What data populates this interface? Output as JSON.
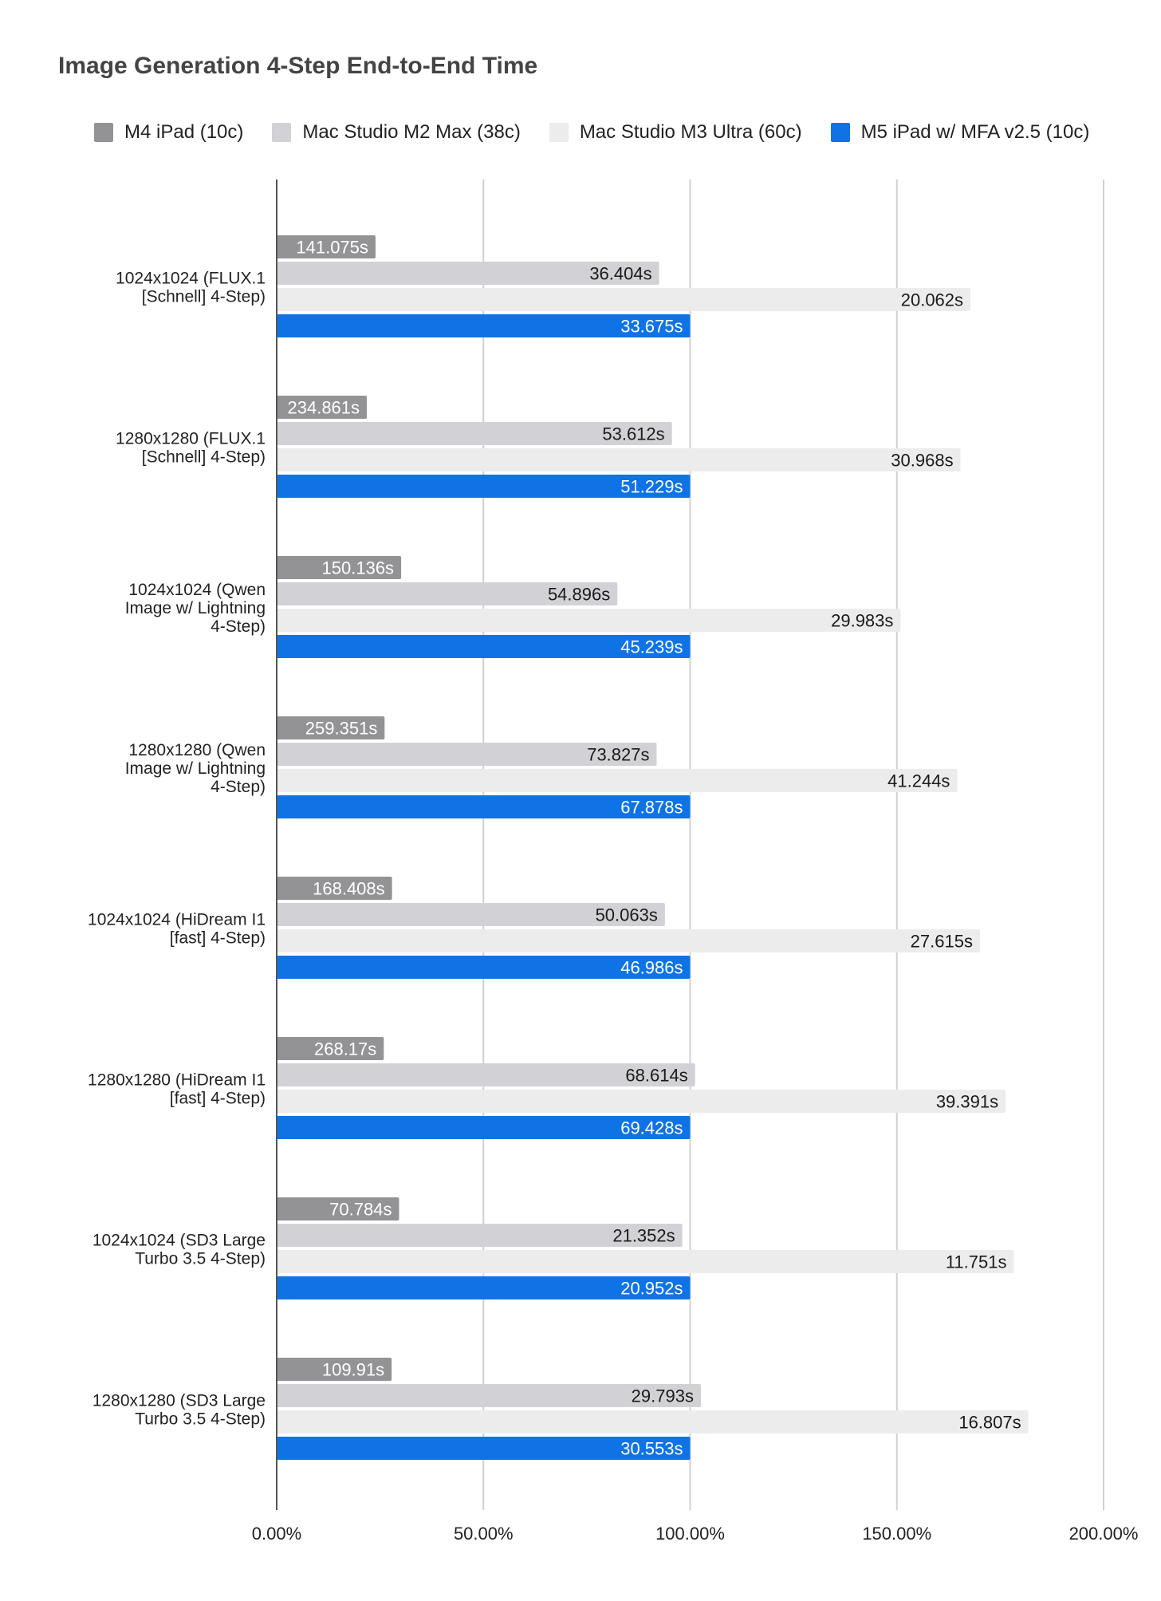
{
  "chart_data": {
    "type": "bar",
    "orientation": "horizontal",
    "title": "Image Generation 4-Step End-to-End Time",
    "xlabel": "",
    "ylabel": "",
    "xlim": [
      0,
      200
    ],
    "xticks": [
      "0.00%",
      "50.00%",
      "100.00%",
      "150.00%",
      "200.00%"
    ],
    "grid": true,
    "legend_position": "top",
    "categories": [
      "1024x1024 (FLUX.1 [Schnell] 4-Step)",
      "1280x1280 (FLUX.1 [Schnell] 4-Step)",
      "1024x1024 (Qwen Image w/ Lightning 4-Step)",
      "1280x1280 (Qwen Image w/ Lightning 4-Step)",
      "1024x1024 (HiDream I1 [fast] 4-Step)",
      "1280x1280 (HiDream I1 [fast] 4-Step)",
      "1024x1024 (SD3 Large Turbo 3.5 4-Step)",
      "1280x1280 (SD3 Large Turbo 3.5 4-Step)"
    ],
    "category_lines": [
      [
        "1024x1024 (FLUX.1",
        "[Schnell] 4-Step)"
      ],
      [
        "1280x1280 (FLUX.1",
        "[Schnell] 4-Step)"
      ],
      [
        "1024x1024 (Qwen",
        "Image w/ Lightning",
        "4-Step)"
      ],
      [
        "1280x1280 (Qwen",
        "Image w/ Lightning",
        "4-Step)"
      ],
      [
        "1024x1024 (HiDream I1",
        "[fast] 4-Step)"
      ],
      [
        "1280x1280 (HiDream I1",
        "[fast] 4-Step)"
      ],
      [
        "1024x1024 (SD3 Large",
        "Turbo 3.5 4-Step)"
      ],
      [
        "1280x1280 (SD3 Large",
        "Turbo 3.5 4-Step)"
      ]
    ],
    "series": [
      {
        "name": "M4 iPad (10c)",
        "color": "#939396",
        "label_color": "#ffffff",
        "values": [
          23.9,
          21.8,
          30.1,
          26.1,
          27.9,
          25.9,
          29.6,
          27.8
        ],
        "labels": [
          "141.075s",
          "234.861s",
          "150.136s",
          "259.351s",
          "168.408s",
          "268.17s",
          "70.784s",
          "109.91s"
        ]
      },
      {
        "name": "Mac Studio M2 Max (38c)",
        "color": "#d2d2d6",
        "label_color": "#1a1a1a",
        "values": [
          92.5,
          95.6,
          82.4,
          91.9,
          93.9,
          101.2,
          98.1,
          102.6
        ],
        "labels": [
          "36.404s",
          "53.612s",
          "54.896s",
          "73.827s",
          "50.063s",
          "68.614s",
          "21.352s",
          "29.793s"
        ]
      },
      {
        "name": "Mac Studio M3 Ultra (60c)",
        "color": "#ececed",
        "label_color": "#1a1a1a",
        "values": [
          167.8,
          165.4,
          150.9,
          164.6,
          170.1,
          176.3,
          178.3,
          181.8
        ],
        "labels": [
          "20.062s",
          "30.968s",
          "29.983s",
          "41.244s",
          "27.615s",
          "39.391s",
          "11.751s",
          "16.807s"
        ]
      },
      {
        "name": "M5 iPad w/ MFA v2.5 (10c)",
        "color": "#0f73e6",
        "label_color": "#ffffff",
        "values": [
          100,
          100,
          100,
          100,
          100,
          100,
          100,
          100
        ],
        "labels": [
          "33.675s",
          "51.229s",
          "45.239s",
          "67.878s",
          "46.986s",
          "69.428s",
          "20.952s",
          "30.553s"
        ]
      }
    ]
  }
}
